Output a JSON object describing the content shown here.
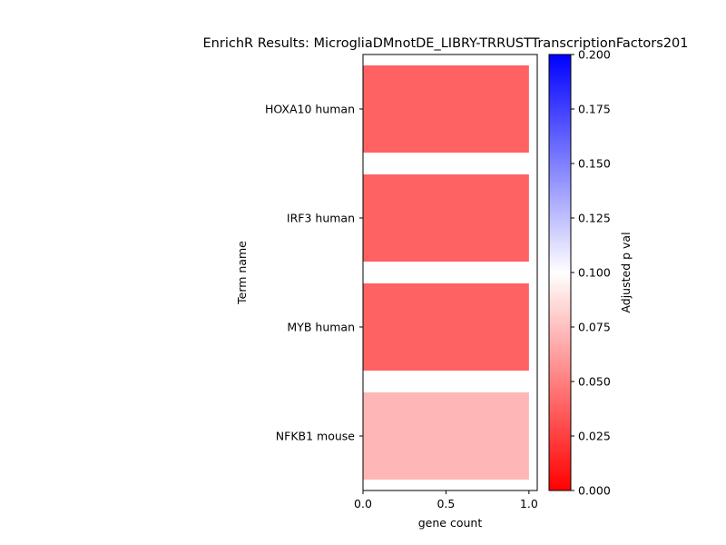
{
  "chart_data": {
    "type": "bar",
    "orientation": "horizontal",
    "title": "EnrichR Results: MicrogliaDMnotDE_LIBRY-TRRUSTTranscriptionFactors201",
    "xlabel": "gene count",
    "ylabel": "Term name",
    "categories": [
      "HOXA10 human",
      "IRF3 human",
      "MYB human",
      "NFKB1 mouse"
    ],
    "values": [
      1,
      1,
      1,
      1
    ],
    "adjusted_p_values": [
      0.018,
      0.018,
      0.018,
      0.062
    ],
    "xlim": [
      0,
      1.05
    ],
    "xticks": [
      "0.0",
      "0.5",
      "1.0"
    ],
    "xtick_values": [
      0,
      0.5,
      1.0
    ],
    "grid": false,
    "colorbar": {
      "label": "Adjusted p val",
      "range": [
        0,
        0.2
      ],
      "ticks": [
        "0.000",
        "0.025",
        "0.050",
        "0.075",
        "0.100",
        "0.125",
        "0.150",
        "0.175",
        "0.200"
      ],
      "tick_values": [
        0,
        0.025,
        0.05,
        0.075,
        0.1,
        0.125,
        0.15,
        0.175,
        0.2
      ],
      "colors": [
        "#ff0000",
        "#ffffff",
        "#0000ff"
      ]
    }
  }
}
